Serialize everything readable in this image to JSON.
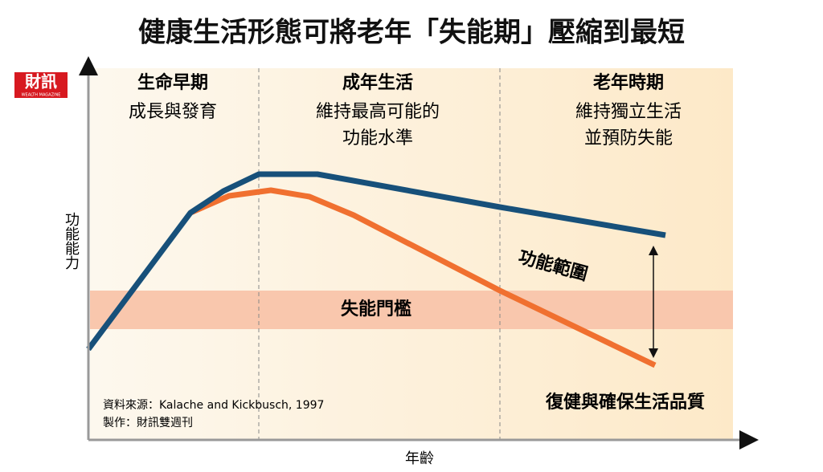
{
  "title": "健康生活形態可將老年「失能期」壓縮到最短",
  "logo": {
    "name": "財訊",
    "sub": "WEALTH MAGAZINE"
  },
  "sections": [
    {
      "heading": "生命早期",
      "lines": [
        "成長與發育"
      ]
    },
    {
      "heading": "成年生活",
      "lines": [
        "維持最高可能的",
        "功能水準"
      ]
    },
    {
      "heading": "老年時期",
      "lines": [
        "維持獨立生活",
        "並預防失能"
      ]
    }
  ],
  "y_label": "功能能力",
  "x_label": "年齡",
  "threshold": "失能門檻",
  "range_label": "功能範圍",
  "outcome": "復健與確保生活品質",
  "source": "資料來源：Kalache and Kickbusch, 1997",
  "credit": "製作：財訊雙週刊"
}
